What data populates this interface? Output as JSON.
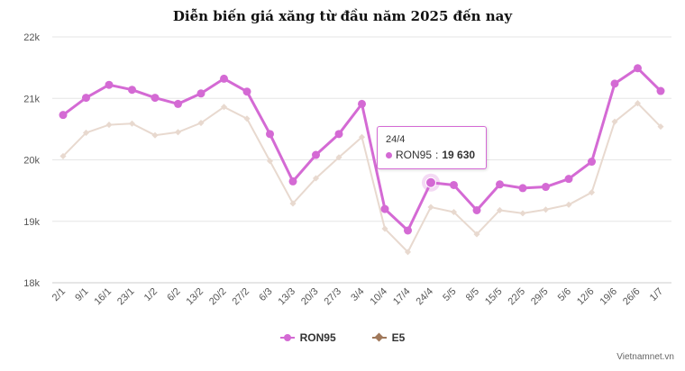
{
  "chart_data": {
    "type": "line",
    "title": "Diễn biến giá xăng từ đầu năm 2025 đến nay",
    "xlabel": "",
    "ylabel": "",
    "categories": [
      "2/1",
      "9/1",
      "16/1",
      "23/1",
      "1/2",
      "6/2",
      "13/2",
      "20/2",
      "27/2",
      "6/3",
      "13/3",
      "20/3",
      "27/3",
      "3/4",
      "10/4",
      "17/4",
      "24/4",
      "5/5",
      "8/5",
      "15/5",
      "22/5",
      "29/5",
      "5/6",
      "12/6",
      "19/6",
      "26/6",
      "1/7"
    ],
    "ylim": [
      18000,
      22000
    ],
    "yticks": [
      {
        "value": 18000,
        "label": "18k"
      },
      {
        "value": 19000,
        "label": "19k"
      },
      {
        "value": 20000,
        "label": "20k"
      },
      {
        "value": 21000,
        "label": "21k"
      },
      {
        "value": 22000,
        "label": "22k"
      }
    ],
    "grid": true,
    "legend_position": "bottom",
    "series": [
      {
        "name": "RON95",
        "color": "#d46ad4",
        "values": [
          20730,
          21010,
          21220,
          21140,
          21010,
          20910,
          21080,
          21320,
          21110,
          20420,
          19650,
          20080,
          20420,
          20910,
          19200,
          18850,
          19630,
          19590,
          19180,
          19600,
          19540,
          19560,
          19690,
          19970,
          21240,
          21490,
          21120
        ]
      },
      {
        "name": "E5",
        "color": "#e8d9cf",
        "values": [
          20060,
          20440,
          20570,
          20590,
          20400,
          20450,
          20600,
          20860,
          20670,
          19980,
          19290,
          19700,
          20040,
          20370,
          18880,
          18500,
          19230,
          19150,
          18790,
          19180,
          19130,
          19190,
          19270,
          19470,
          20620,
          20920,
          20540
        ]
      }
    ],
    "tooltip": {
      "date": "24/4",
      "series": "RON95",
      "value_label": "19 630"
    }
  },
  "footer": {
    "source": "Vietnamnet.vn"
  }
}
